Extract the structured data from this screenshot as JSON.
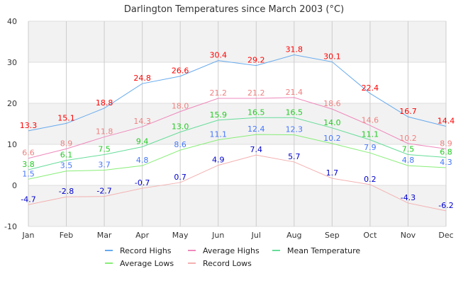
{
  "chart_data": {
    "type": "line",
    "title": "Darlington Temperatures since March 2003 (°C)",
    "categories": [
      "Jan",
      "Feb",
      "Mar",
      "Apr",
      "May",
      "Jun",
      "Jul",
      "Aug",
      "Sep",
      "Oct",
      "Nov",
      "Dec"
    ],
    "ylim": [
      -10,
      40
    ],
    "yticks": [
      -10,
      0,
      10,
      20,
      30,
      40
    ],
    "grid": true,
    "legend_position": "bottom",
    "series": [
      {
        "name": "Record Highs",
        "values": [
          13.3,
          15.1,
          18.8,
          24.8,
          26.6,
          30.4,
          29.2,
          31.8,
          30.1,
          22.4,
          16.7,
          14.4
        ],
        "line_color": "#66aaee",
        "label_color": "#ff0000"
      },
      {
        "name": "Average Highs",
        "values": [
          6.6,
          8.9,
          11.8,
          14.3,
          18.0,
          21.2,
          21.2,
          21.4,
          18.6,
          14.6,
          10.2,
          8.9
        ],
        "line_color": "#ee88bb",
        "label_color": "#f08080"
      },
      {
        "name": "Mean Temperature",
        "values": [
          3.8,
          6.1,
          7.5,
          9.4,
          13.0,
          15.9,
          16.5,
          16.5,
          14.0,
          11.1,
          7.5,
          6.8
        ],
        "line_color": "#66dd99",
        "label_color": "#22cc22"
      },
      {
        "name": "Average Lows",
        "values": [
          1.5,
          3.5,
          3.7,
          4.8,
          8.6,
          11.1,
          12.4,
          12.3,
          10.2,
          7.9,
          4.8,
          4.3
        ],
        "line_color": "#88ee77",
        "label_color": "#4477ff"
      },
      {
        "name": "Record Lows",
        "values": [
          -4.7,
          -2.8,
          -2.7,
          -0.7,
          0.7,
          4.9,
          7.4,
          5.7,
          1.7,
          0.2,
          -4.3,
          -6.2
        ],
        "line_color": "#f4b0b0",
        "label_color": "#0000cc"
      }
    ]
  }
}
